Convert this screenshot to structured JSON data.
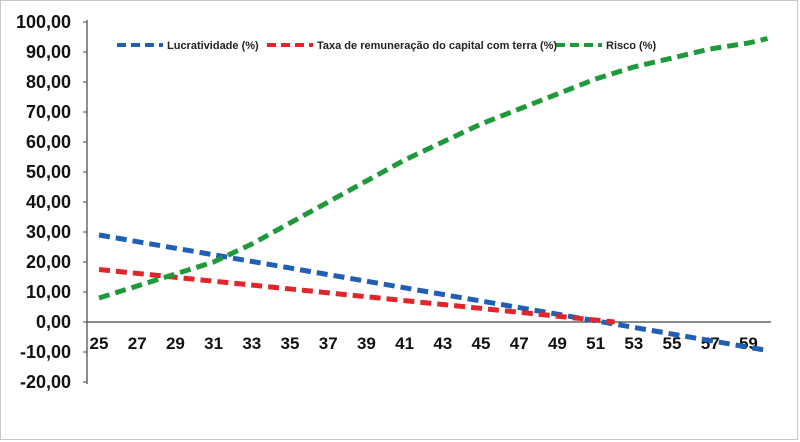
{
  "chart_data": {
    "type": "line",
    "title": "",
    "xlabel": "",
    "ylabel": "",
    "x": [
      25,
      27,
      29,
      31,
      33,
      35,
      37,
      39,
      41,
      43,
      45,
      47,
      49,
      51,
      53,
      55,
      57,
      59
    ],
    "x_tick_labels": [
      "25",
      "27",
      "29",
      "31",
      "33",
      "35",
      "37",
      "39",
      "41",
      "43",
      "45",
      "47",
      "49",
      "51",
      "53",
      "55",
      "57",
      "59"
    ],
    "ylim": [
      -20,
      100
    ],
    "y_tick_labels": [
      "100,00",
      "90,00",
      "80,00",
      "70,00",
      "60,00",
      "50,00",
      "40,00",
      "30,00",
      "20,00",
      "10,00",
      "0,00",
      "-10,00",
      "-20,00"
    ],
    "y_ticks": [
      100,
      90,
      80,
      70,
      60,
      50,
      40,
      30,
      20,
      10,
      0,
      -10,
      -20
    ],
    "grid": false,
    "legend_position": "top",
    "series": [
      {
        "name": "Lucratividade (%)",
        "color": "#1f5fb4",
        "style": "dashed",
        "x": [
          25,
          60
        ],
        "values": [
          29,
          -9.5
        ]
      },
      {
        "name": "Taxa de remuneração do capital com terra (%)",
        "color": "#e0262b",
        "style": "dashed",
        "x": [
          25,
          52
        ],
        "values": [
          17.5,
          0
        ]
      },
      {
        "name": "Risco (%)",
        "color": "#1f9a3a",
        "style": "dashed",
        "x": [
          25,
          27,
          29,
          31,
          33,
          35,
          37,
          39,
          41,
          43,
          45,
          47,
          49,
          51,
          53,
          55,
          57,
          59,
          60
        ],
        "values": [
          8,
          12,
          16,
          20,
          26,
          33,
          40,
          47,
          54,
          60,
          66,
          71,
          76,
          81,
          85,
          88,
          91,
          93,
          94.5
        ]
      }
    ]
  }
}
